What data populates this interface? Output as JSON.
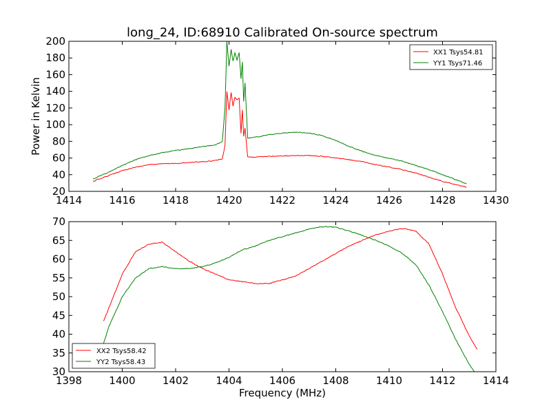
{
  "chart_data": [
    {
      "type": "line",
      "title": "long_24, ID:68910 Calibrated On-source spectrum",
      "xlabel": "",
      "ylabel": "Power in Kelvin",
      "xlim": [
        1414,
        1430
      ],
      "ylim": [
        20,
        200
      ],
      "xticks": [
        1414,
        1416,
        1418,
        1420,
        1422,
        1424,
        1426,
        1428,
        1430
      ],
      "yticks": [
        20,
        40,
        60,
        80,
        100,
        120,
        140,
        160,
        180,
        200
      ],
      "grid": false,
      "legend": "top-right",
      "series": [
        {
          "name": "XX1 Tsys54.81",
          "color": "#ff0000",
          "x": [
            1414.9,
            1415.5,
            1416.0,
            1416.5,
            1417.0,
            1417.5,
            1418.0,
            1418.5,
            1419.0,
            1419.5,
            1419.75,
            1419.85,
            1419.92,
            1420.0,
            1420.08,
            1420.15,
            1420.22,
            1420.3,
            1420.38,
            1420.45,
            1420.5,
            1420.55,
            1420.6,
            1420.7,
            1421.0,
            1421.5,
            1422.0,
            1422.5,
            1423.0,
            1423.5,
            1424.0,
            1424.5,
            1425.0,
            1425.5,
            1426.0,
            1426.5,
            1427.0,
            1427.5,
            1428.0,
            1428.5,
            1428.9
          ],
          "y": [
            32,
            39,
            45,
            49,
            52,
            53,
            53.5,
            54.5,
            55.5,
            57,
            59,
            75,
            140,
            118,
            139,
            122,
            133,
            130,
            132,
            90,
            118,
            86,
            96,
            61,
            61,
            62,
            62.5,
            63,
            63,
            62,
            60,
            58,
            55.5,
            52,
            49,
            46,
            42,
            37,
            32,
            28,
            25
          ]
        },
        {
          "name": "YY1 Tsys71.46",
          "color": "#008000",
          "x": [
            1414.9,
            1415.5,
            1416.0,
            1416.5,
            1417.0,
            1417.5,
            1418.0,
            1418.5,
            1419.0,
            1419.5,
            1419.75,
            1419.85,
            1419.92,
            1420.0,
            1420.08,
            1420.15,
            1420.22,
            1420.3,
            1420.38,
            1420.45,
            1420.5,
            1420.55,
            1420.6,
            1420.7,
            1421.0,
            1421.5,
            1422.0,
            1422.5,
            1423.0,
            1423.5,
            1424.0,
            1424.5,
            1425.0,
            1425.5,
            1426.0,
            1426.5,
            1427.0,
            1427.5,
            1428.0,
            1428.5,
            1428.9
          ],
          "y": [
            35,
            43,
            51,
            58,
            63,
            66.5,
            69,
            71,
            73.5,
            76,
            80,
            120,
            200,
            170,
            190,
            176,
            186,
            178,
            186,
            155,
            175,
            128,
            150,
            84,
            85,
            88,
            90,
            91,
            90,
            87,
            81,
            74,
            68,
            63,
            59.5,
            56,
            51,
            46,
            40,
            34,
            29
          ]
        }
      ]
    },
    {
      "type": "line",
      "title": "",
      "xlabel": "Frequency (MHz)",
      "ylabel": "",
      "xlim": [
        1398,
        1414
      ],
      "ylim": [
        30,
        70
      ],
      "xticks": [
        1398,
        1400,
        1402,
        1404,
        1406,
        1408,
        1410,
        1412,
        1414
      ],
      "yticks": [
        30,
        35,
        40,
        45,
        50,
        55,
        60,
        65,
        70
      ],
      "grid": false,
      "legend": "bottom-left",
      "series": [
        {
          "name": "XX2 Tsys58.42",
          "color": "#ff0000",
          "x": [
            1399.3,
            1399.5,
            1400.0,
            1400.5,
            1401.0,
            1401.5,
            1402.0,
            1402.5,
            1403.0,
            1403.5,
            1404.0,
            1404.5,
            1405.0,
            1405.5,
            1406.0,
            1406.5,
            1407.0,
            1407.5,
            1408.0,
            1408.5,
            1409.0,
            1409.5,
            1410.0,
            1410.5,
            1411.0,
            1411.5,
            1412.0,
            1412.5,
            1413.0,
            1413.3
          ],
          "y": [
            43.5,
            47,
            56,
            62,
            64,
            64.5,
            62,
            59.5,
            57.5,
            56,
            54.5,
            54,
            53.5,
            53.5,
            54.5,
            55.5,
            57.5,
            59.5,
            61.5,
            63.5,
            65,
            66.5,
            67.5,
            68.2,
            67.5,
            64,
            56,
            47,
            39.5,
            36
          ]
        },
        {
          "name": "YY2 Tsys58.43",
          "color": "#008000",
          "x": [
            1399.3,
            1399.5,
            1400.0,
            1400.5,
            1401.0,
            1401.5,
            1402.0,
            1402.5,
            1403.0,
            1403.5,
            1404.0,
            1404.5,
            1405.0,
            1405.5,
            1406.0,
            1406.5,
            1407.0,
            1407.5,
            1408.0,
            1408.5,
            1409.0,
            1409.5,
            1410.0,
            1410.5,
            1411.0,
            1411.5,
            1412.0,
            1412.5,
            1413.0,
            1413.2
          ],
          "y": [
            37.5,
            42,
            50,
            55,
            57.5,
            58,
            57.5,
            57.5,
            58,
            59,
            60.5,
            62.5,
            63.5,
            65,
            66,
            67,
            68,
            68.7,
            68.5,
            67.5,
            66.3,
            65,
            63.5,
            61.5,
            58.5,
            53,
            46,
            38.5,
            32,
            30
          ]
        }
      ]
    }
  ]
}
